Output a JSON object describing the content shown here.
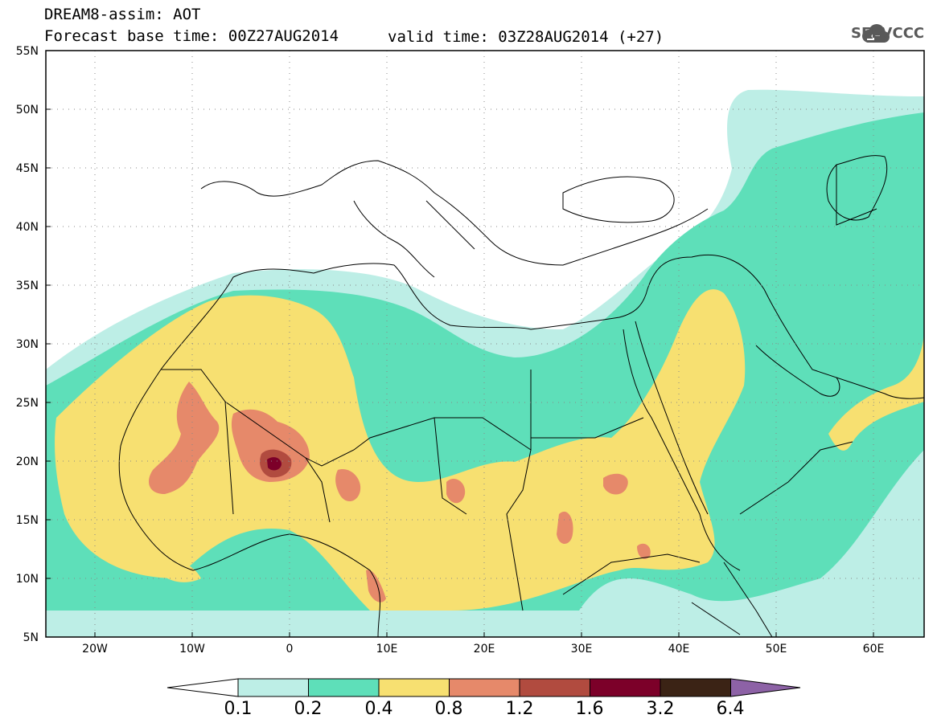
{
  "header": {
    "title": "DREAM8-assim: AOT",
    "base_time": "Forecast base time: 00Z27AUG2014",
    "valid_time": "valid time: 03Z28AUG2014 (+27)"
  },
  "logo": {
    "text": "SEEVCCC",
    "icon": "cloud-icon"
  },
  "map": {
    "projection": "lat-lon",
    "lon_range": [
      -25,
      65
    ],
    "lat_range": [
      5,
      55
    ],
    "lat_ticks": [
      "5N",
      "10N",
      "15N",
      "20N",
      "25N",
      "30N",
      "35N",
      "40N",
      "45N",
      "50N",
      "55N"
    ],
    "lon_ticks": [
      "20W",
      "10W",
      "0",
      "10E",
      "20E",
      "30E",
      "40E",
      "50E",
      "60E"
    ],
    "grid": "dotted"
  },
  "colorbar": {
    "levels": [
      "0.1",
      "0.2",
      "0.4",
      "0.8",
      "1.2",
      "1.6",
      "3.2",
      "6.4"
    ],
    "colors": [
      "#ffffff",
      "#bdeee6",
      "#5edfb9",
      "#f7e071",
      "#e6896a",
      "#b14b3f",
      "#7c0029",
      "#3b2315",
      "#8d62a6"
    ]
  }
}
